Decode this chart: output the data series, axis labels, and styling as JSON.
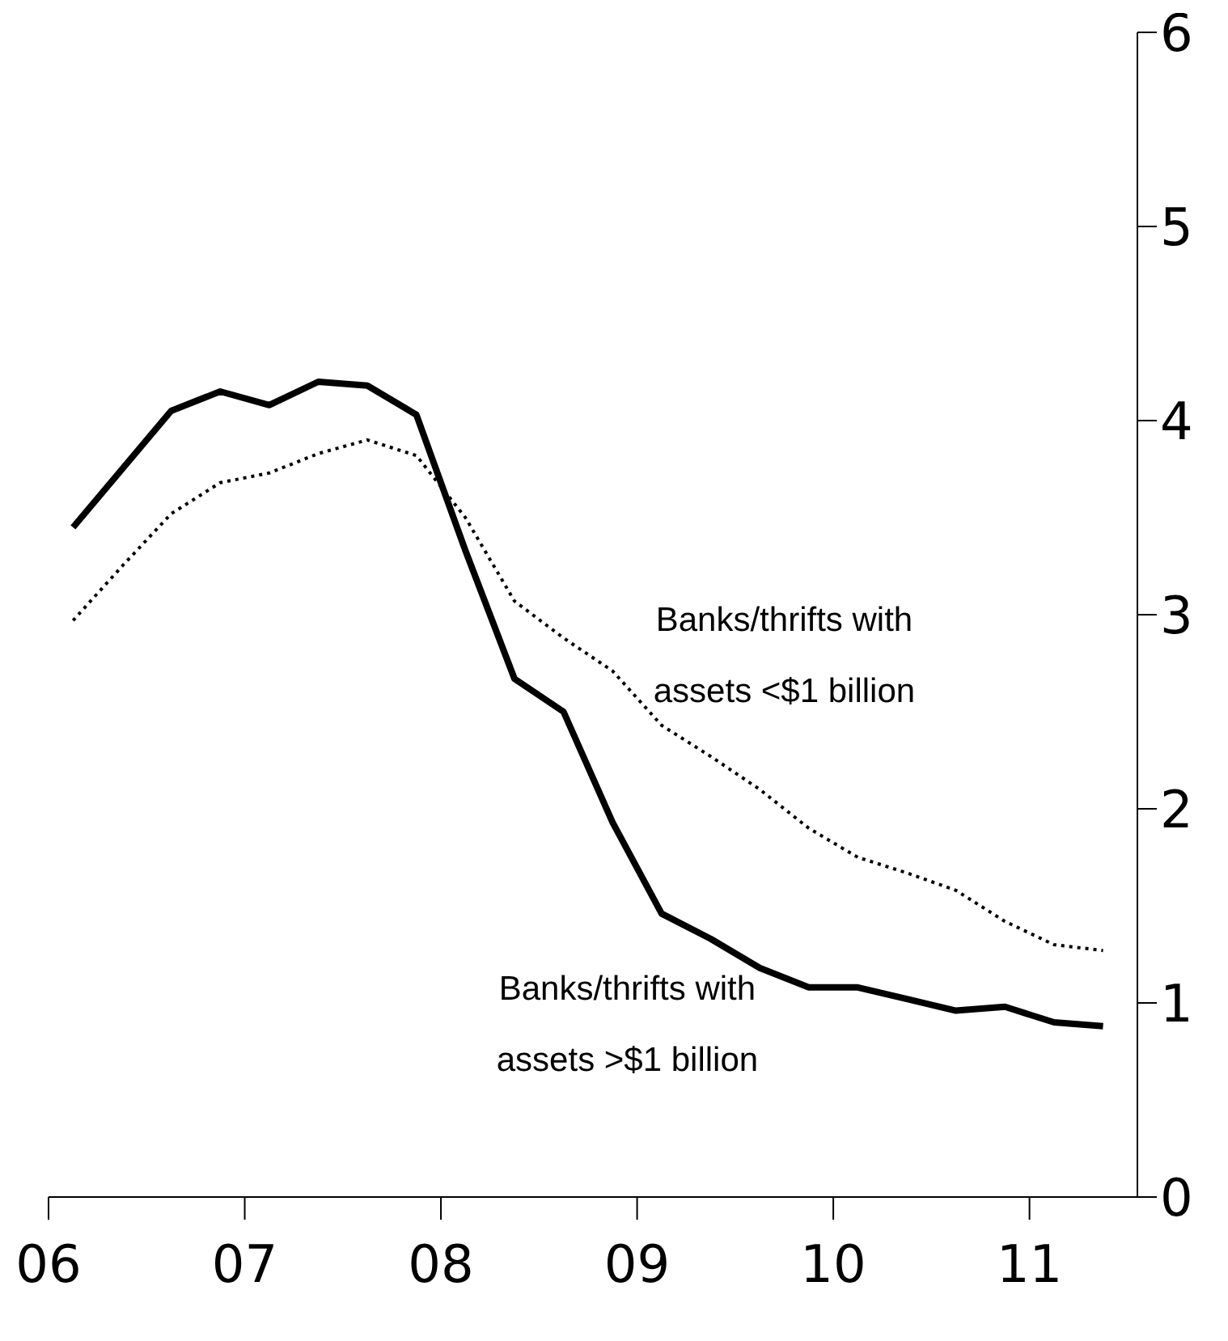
{
  "chart_data": {
    "type": "line",
    "xlim": [
      2006,
      2011.55
    ],
    "xticks": [
      {
        "value": 2006,
        "label": "06"
      },
      {
        "value": 2007,
        "label": "07"
      },
      {
        "value": 2008,
        "label": "08"
      },
      {
        "value": 2009,
        "label": "09"
      },
      {
        "value": 2010,
        "label": "10"
      },
      {
        "value": 2011,
        "label": "11"
      }
    ],
    "ylim": [
      0,
      6
    ],
    "yticks": [
      0,
      1,
      2,
      3,
      4,
      5,
      6
    ],
    "marker": "none",
    "x": [
      2006.125,
      2006.375,
      2006.625,
      2006.875,
      2007.125,
      2007.375,
      2007.625,
      2007.875,
      2008.125,
      2008.375,
      2008.625,
      2008.875,
      2009.125,
      2009.375,
      2009.625,
      2009.875,
      2010.125,
      2010.375,
      2010.625,
      2010.875,
      2011.125,
      2011.375
    ],
    "series": [
      {
        "name": "Banks/thrifts with assets <$1 billion",
        "color": "#000000",
        "line_style": "dotted",
        "values": [
          2.97,
          3.25,
          3.52,
          3.68,
          3.73,
          3.83,
          3.9,
          3.82,
          3.5,
          3.07,
          2.88,
          2.71,
          2.43,
          2.27,
          2.1,
          1.9,
          1.75,
          1.67,
          1.58,
          1.42,
          1.3,
          1.27
        ]
      },
      {
        "name": "Banks/thrifts with assets >$1 billion",
        "color": "#000000",
        "line_style": "solid",
        "values": [
          3.45,
          3.75,
          4.05,
          4.15,
          4.08,
          4.2,
          4.18,
          4.03,
          3.33,
          2.67,
          2.5,
          1.93,
          1.46,
          1.33,
          1.18,
          1.08,
          1.08,
          1.02,
          0.96,
          0.98,
          0.9,
          0.88
        ]
      }
    ]
  }
}
